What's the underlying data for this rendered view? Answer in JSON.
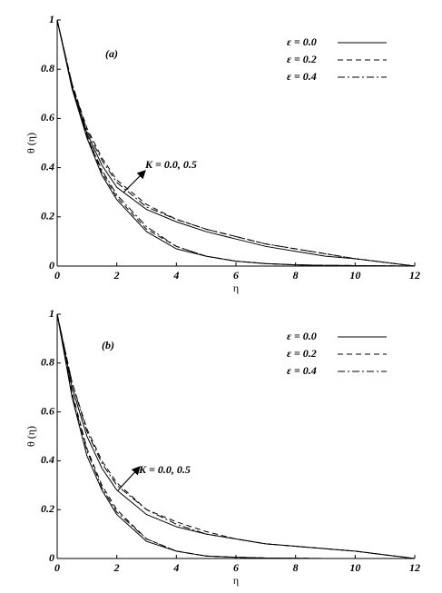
{
  "chart_data": [
    {
      "type": "line",
      "panel_label": "(a)",
      "annotation": "K = 0.0, 0.5",
      "x_label": "η",
      "y_label": "θ (η)",
      "x": [
        0,
        0.5,
        1,
        1.5,
        2,
        3,
        4,
        5,
        6,
        7,
        8,
        9,
        10,
        11,
        12
      ],
      "xlim": [
        0,
        12
      ],
      "xticks": [
        0,
        2,
        4,
        6,
        8,
        10,
        12
      ],
      "ylim": [
        0,
        1
      ],
      "yticks": [
        0,
        0.2,
        0.4,
        0.6,
        0.8,
        1
      ],
      "series": [
        {
          "name": "ε = 0.0",
          "color": "#000000",
          "dash": "solid",
          "lines": [
            {
              "values": [
                1,
                0.72,
                0.52,
                0.37,
                0.27,
                0.14,
                0.07,
                0.04,
                0.02,
                0.01,
                0.005,
                0.003,
                0.002,
                0.001,
                0
              ]
            },
            {
              "values": [
                1,
                0.73,
                0.54,
                0.41,
                0.32,
                0.23,
                0.18,
                0.14,
                0.11,
                0.08,
                0.06,
                0.04,
                0.03,
                0.015,
                0
              ]
            }
          ]
        },
        {
          "name": "ε = 0.2",
          "color": "#000000",
          "dash": "dashed",
          "lines": [
            {
              "values": [
                1,
                0.73,
                0.53,
                0.38,
                0.28,
                0.15,
                0.08,
                0.04,
                0.02,
                0.01,
                0.005,
                0.003,
                0.002,
                0.001,
                0
              ]
            },
            {
              "values": [
                1,
                0.74,
                0.56,
                0.44,
                0.35,
                0.25,
                0.19,
                0.15,
                0.12,
                0.09,
                0.07,
                0.05,
                0.03,
                0.015,
                0
              ]
            }
          ]
        },
        {
          "name": "ε = 0.4",
          "color": "#000000",
          "dash": "dashdot",
          "lines": [
            {
              "values": [
                1,
                0.73,
                0.53,
                0.39,
                0.29,
                0.16,
                0.08,
                0.04,
                0.02,
                0.01,
                0.005,
                0.003,
                0.002,
                0.001,
                0
              ]
            },
            {
              "values": [
                1,
                0.74,
                0.55,
                0.43,
                0.34,
                0.24,
                0.19,
                0.15,
                0.12,
                0.09,
                0.07,
                0.05,
                0.03,
                0.015,
                0
              ]
            }
          ]
        }
      ]
    },
    {
      "type": "line",
      "panel_label": "(b)",
      "annotation": "K = 0.0, 0.5",
      "x_label": "η",
      "y_label": "θ (η)",
      "x": [
        0,
        0.5,
        1,
        1.5,
        2,
        3,
        4,
        5,
        6,
        7,
        8,
        9,
        10,
        11,
        12
      ],
      "xlim": [
        0,
        12
      ],
      "xticks": [
        0,
        2,
        4,
        6,
        8,
        10,
        12
      ],
      "ylim": [
        0,
        1
      ],
      "yticks": [
        0,
        0.2,
        0.4,
        0.6,
        0.8,
        1
      ],
      "series": [
        {
          "name": "ε = 0.0",
          "color": "#000000",
          "dash": "solid",
          "lines": [
            {
              "values": [
                1,
                0.66,
                0.42,
                0.28,
                0.18,
                0.07,
                0.03,
                0.01,
                0.005,
                0.002,
                0.001,
                0,
                0,
                0,
                0
              ]
            },
            {
              "values": [
                1,
                0.7,
                0.5,
                0.37,
                0.28,
                0.18,
                0.13,
                0.1,
                0.08,
                0.06,
                0.05,
                0.04,
                0.03,
                0.015,
                0
              ]
            }
          ]
        },
        {
          "name": "ε = 0.2",
          "color": "#000000",
          "dash": "dashed",
          "lines": [
            {
              "values": [
                1,
                0.68,
                0.45,
                0.3,
                0.2,
                0.08,
                0.03,
                0.01,
                0.005,
                0.002,
                0.001,
                0,
                0,
                0,
                0
              ]
            },
            {
              "values": [
                1,
                0.72,
                0.53,
                0.4,
                0.31,
                0.2,
                0.15,
                0.11,
                0.08,
                0.06,
                0.05,
                0.04,
                0.03,
                0.015,
                0
              ]
            }
          ]
        },
        {
          "name": "ε = 0.4",
          "color": "#000000",
          "dash": "dashdot",
          "lines": [
            {
              "values": [
                1,
                0.67,
                0.44,
                0.29,
                0.19,
                0.08,
                0.03,
                0.01,
                0.005,
                0.002,
                0.001,
                0,
                0,
                0,
                0
              ]
            },
            {
              "values": [
                1,
                0.72,
                0.52,
                0.39,
                0.3,
                0.2,
                0.14,
                0.1,
                0.08,
                0.06,
                0.05,
                0.04,
                0.03,
                0.015,
                0
              ]
            }
          ]
        }
      ]
    }
  ]
}
